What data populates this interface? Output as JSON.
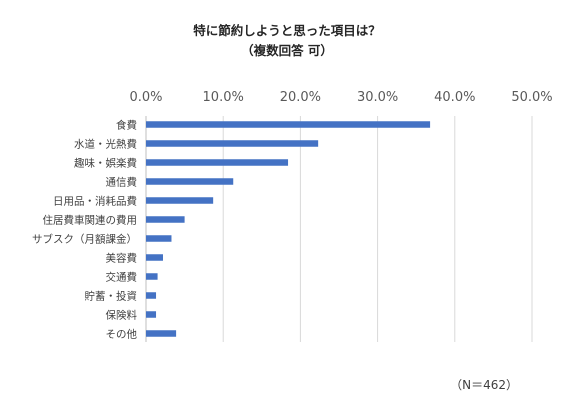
{
  "chart_data": {
    "type": "bar",
    "orientation": "horizontal",
    "title": "特に節約しようと思った項目は？",
    "subtitle": "（複数回答 可）",
    "categories": [
      "食費",
      "水道・光熱費",
      "趣味・娯楽費",
      "通信費",
      "日用品・消耗品費",
      "住居費車関連の費用",
      "サブスク（月額課金）",
      "美容費",
      "交通費",
      "貯蓄・投資",
      "保険料",
      "その他"
    ],
    "values": [
      36.8,
      22.3,
      18.4,
      11.3,
      8.7,
      5.0,
      3.3,
      2.2,
      1.5,
      1.3,
      1.3,
      3.9
    ],
    "unit": "%",
    "xlim": [
      0,
      50
    ],
    "xticks": [
      0,
      10,
      20,
      30,
      40,
      50
    ],
    "xtick_labels": [
      "0.0%",
      "10.0%",
      "20.0%",
      "30.0%",
      "40.0%",
      "50.0%"
    ],
    "xaxis_position": "top",
    "grid": true,
    "bar_color": "#4472C4",
    "gridline_color": "#D9D9D9",
    "note": "（N＝462）"
  }
}
